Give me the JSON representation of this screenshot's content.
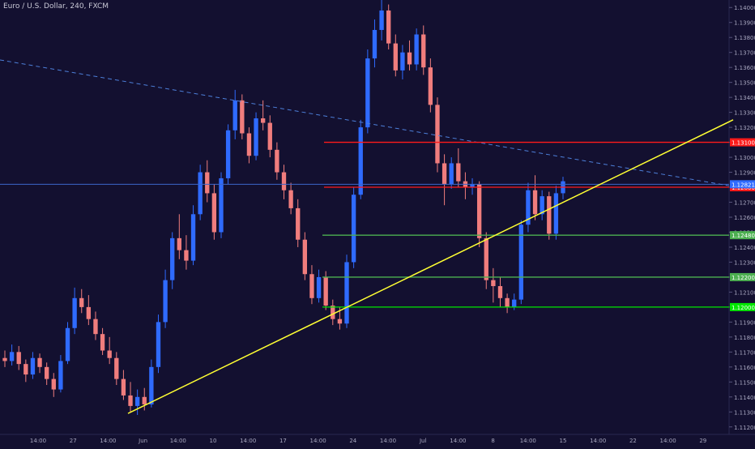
{
  "chart_data": {
    "type": "candlestick",
    "title": "Euro / U.S. Dollar, 240, FXCM",
    "colors": {
      "background": "#131030",
      "up": "#2f6bff",
      "down": "#f07d7d",
      "support": "#4caf50",
      "support_strong": "#00e600",
      "resistance": "#ff1a1a",
      "trendline": "#ffff33",
      "dashed_trend": "#4d7fd9",
      "last_price_line": "#3b66c9"
    },
    "y_ticks": [
      1.14,
      1.139,
      1.138,
      1.137,
      1.136,
      1.135,
      1.134,
      1.133,
      1.132,
      1.131,
      1.13,
      1.129,
      1.128,
      1.127,
      1.126,
      1.125,
      1.124,
      1.123,
      1.122,
      1.121,
      1.12,
      1.119,
      1.118,
      1.117,
      1.116,
      1.115,
      1.114,
      1.113,
      1.112
    ],
    "ylim": [
      1.1115,
      1.1405
    ],
    "x_ticks": [
      "14:00",
      "27",
      "14:00",
      "Jun",
      "14:00",
      "10",
      "14:00",
      "17",
      "14:00",
      "24",
      "14:00",
      "Jul",
      "14:00",
      "8",
      "14:00",
      "15",
      "14:00",
      "22",
      "14:00",
      "29"
    ],
    "hlines": [
      {
        "name": "resistance-1",
        "value": 1.131,
        "label": "1.13100",
        "color": "#ff1a1a"
      },
      {
        "name": "resistance-2",
        "value": 1.128,
        "label": "1.12800",
        "color": "#ff1a1a"
      },
      {
        "name": "support-1",
        "value": 1.1248,
        "label": "1.12480",
        "color": "#4caf50"
      },
      {
        "name": "support-2",
        "value": 1.122,
        "label": "1.12200",
        "color": "#4caf50"
      },
      {
        "name": "support-3",
        "value": 1.12,
        "label": "1.12000",
        "color": "#00e600"
      }
    ],
    "current_price": {
      "value": 1.1282,
      "label": "1.12821"
    },
    "trendline": {
      "from": [
        "May 31",
        1.1129
      ],
      "to": [
        "Jul 29",
        1.1325
      ]
    },
    "dashed_trendline": {
      "from": [
        "May 22",
        1.1365
      ],
      "to": [
        "Jul 25",
        1.1281
      ]
    },
    "candles": [
      [
        1.1166,
        1.1171,
        1.116,
        1.1164
      ],
      [
        1.1164,
        1.1175,
        1.1161,
        1.117
      ],
      [
        1.117,
        1.1174,
        1.1158,
        1.1162
      ],
      [
        1.1162,
        1.1165,
        1.115,
        1.1155
      ],
      [
        1.1155,
        1.117,
        1.1152,
        1.1166
      ],
      [
        1.1166,
        1.1169,
        1.1156,
        1.116
      ],
      [
        1.116,
        1.1163,
        1.1148,
        1.1152
      ],
      [
        1.1152,
        1.1156,
        1.114,
        1.1145
      ],
      [
        1.1145,
        1.1168,
        1.1143,
        1.1164
      ],
      [
        1.1164,
        1.119,
        1.1162,
        1.1186
      ],
      [
        1.1186,
        1.1213,
        1.1182,
        1.1206
      ],
      [
        1.1206,
        1.1212,
        1.1196,
        1.12
      ],
      [
        1.12,
        1.1208,
        1.1188,
        1.1192
      ],
      [
        1.1192,
        1.1197,
        1.1178,
        1.1182
      ],
      [
        1.1182,
        1.1186,
        1.1168,
        1.1171
      ],
      [
        1.1171,
        1.118,
        1.1162,
        1.1166
      ],
      [
        1.1166,
        1.117,
        1.1148,
        1.1152
      ],
      [
        1.1152,
        1.1158,
        1.1138,
        1.1141
      ],
      [
        1.1141,
        1.115,
        1.113,
        1.1134
      ],
      [
        1.1134,
        1.1145,
        1.1128,
        1.114
      ],
      [
        1.114,
        1.1146,
        1.1131,
        1.1135
      ],
      [
        1.1135,
        1.1165,
        1.1133,
        1.116
      ],
      [
        1.116,
        1.1195,
        1.1156,
        1.119
      ],
      [
        1.119,
        1.1225,
        1.1186,
        1.1218
      ],
      [
        1.1218,
        1.125,
        1.1212,
        1.1246
      ],
      [
        1.1246,
        1.1262,
        1.1232,
        1.1238
      ],
      [
        1.1238,
        1.1248,
        1.1225,
        1.1231
      ],
      [
        1.1231,
        1.1268,
        1.1228,
        1.1262
      ],
      [
        1.1262,
        1.1295,
        1.1258,
        1.129
      ],
      [
        1.129,
        1.1298,
        1.127,
        1.1276
      ],
      [
        1.1276,
        1.1282,
        1.1245,
        1.125
      ],
      [
        1.125,
        1.129,
        1.1246,
        1.1286
      ],
      [
        1.1286,
        1.1322,
        1.1282,
        1.1318
      ],
      [
        1.1318,
        1.1345,
        1.1312,
        1.1338
      ],
      [
        1.1338,
        1.1342,
        1.1312,
        1.1316
      ],
      [
        1.1316,
        1.132,
        1.1296,
        1.1301
      ],
      [
        1.1301,
        1.133,
        1.1298,
        1.1326
      ],
      [
        1.1326,
        1.1338,
        1.1318,
        1.1323
      ],
      [
        1.1323,
        1.1328,
        1.13,
        1.1305
      ],
      [
        1.1305,
        1.131,
        1.1285,
        1.129
      ],
      [
        1.129,
        1.1295,
        1.1272,
        1.1278
      ],
      [
        1.1278,
        1.1283,
        1.1262,
        1.1266
      ],
      [
        1.1266,
        1.1272,
        1.124,
        1.1245
      ],
      [
        1.1245,
        1.125,
        1.1218,
        1.1222
      ],
      [
        1.1222,
        1.1228,
        1.1202,
        1.1206
      ],
      [
        1.1206,
        1.1225,
        1.1203,
        1.122
      ],
      [
        1.122,
        1.1224,
        1.1198,
        1.1201
      ],
      [
        1.1201,
        1.1205,
        1.1188,
        1.1192
      ],
      [
        1.1192,
        1.12,
        1.1185,
        1.1189
      ],
      [
        1.1189,
        1.1235,
        1.1186,
        1.123
      ],
      [
        1.123,
        1.128,
        1.1226,
        1.1275
      ],
      [
        1.1275,
        1.1325,
        1.1272,
        1.132
      ],
      [
        1.132,
        1.1372,
        1.1316,
        1.1366
      ],
      [
        1.1366,
        1.1392,
        1.136,
        1.1385
      ],
      [
        1.1385,
        1.1405,
        1.1378,
        1.1398
      ],
      [
        1.1398,
        1.1402,
        1.1372,
        1.1376
      ],
      [
        1.1376,
        1.1382,
        1.1354,
        1.1358
      ],
      [
        1.1358,
        1.1375,
        1.1352,
        1.137
      ],
      [
        1.137,
        1.1378,
        1.1358,
        1.1362
      ],
      [
        1.1362,
        1.1386,
        1.1358,
        1.1382
      ],
      [
        1.1382,
        1.1388,
        1.1355,
        1.136
      ],
      [
        1.136,
        1.1366,
        1.133,
        1.1335
      ],
      [
        1.1335,
        1.134,
        1.129,
        1.1296
      ],
      [
        1.1296,
        1.1302,
        1.1268,
        1.1282
      ],
      [
        1.1282,
        1.13,
        1.1279,
        1.1296
      ],
      [
        1.1296,
        1.1306,
        1.128,
        1.1284
      ],
      [
        1.1284,
        1.129,
        1.1272,
        1.128
      ],
      [
        1.128,
        1.1286,
        1.1275,
        1.1282
      ],
      [
        1.1282,
        1.1284,
        1.124,
        1.1246
      ],
      [
        1.1246,
        1.125,
        1.1212,
        1.1218
      ],
      [
        1.1218,
        1.1226,
        1.1203,
        1.1214
      ],
      [
        1.1214,
        1.122,
        1.12,
        1.1206
      ],
      [
        1.1206,
        1.1209,
        1.1196,
        1.12
      ],
      [
        1.12,
        1.1209,
        1.1198,
        1.1205
      ],
      [
        1.1205,
        1.1258,
        1.1202,
        1.1255
      ],
      [
        1.1255,
        1.1283,
        1.125,
        1.1278
      ],
      [
        1.1278,
        1.1288,
        1.1258,
        1.1262
      ],
      [
        1.1262,
        1.1278,
        1.1258,
        1.1274
      ],
      [
        1.1274,
        1.1277,
        1.1245,
        1.1249
      ],
      [
        1.1249,
        1.1281,
        1.1245,
        1.1276
      ],
      [
        1.1276,
        1.1287,
        1.1272,
        1.1284
      ]
    ]
  }
}
